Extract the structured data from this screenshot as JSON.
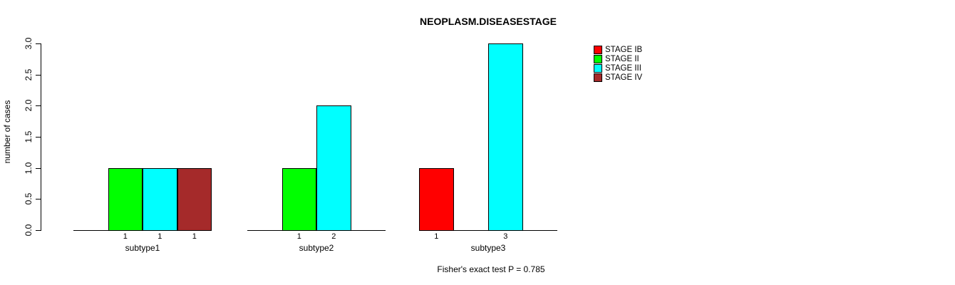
{
  "chart_data": {
    "type": "bar",
    "title": "NEOPLASM.DISEASESTAGE",
    "ylabel": "number of cases",
    "xlabel": "",
    "ylim": [
      0,
      3
    ],
    "ytick_labels": [
      "0.0",
      "0.5",
      "1.0",
      "1.5",
      "2.0",
      "2.5",
      "3.0"
    ],
    "categories": [
      "subtype1",
      "subtype2",
      "subtype3"
    ],
    "series": [
      {
        "name": "STAGE IB",
        "color": "#FF0000",
        "values": [
          0,
          0,
          1
        ]
      },
      {
        "name": "STAGE II",
        "color": "#00FF00",
        "values": [
          1,
          1,
          0
        ]
      },
      {
        "name": "STAGE III",
        "color": "#00FFFF",
        "values": [
          1,
          2,
          3
        ]
      },
      {
        "name": "STAGE IV",
        "color": "#A52A2A",
        "values": [
          1,
          0,
          0
        ]
      }
    ],
    "bar_value_labels_shown": true,
    "grid": false,
    "legend_position": "top-right",
    "annotation": "Fisher's exact test P = 0.785",
    "colors": {
      "background": "#FFFFFF",
      "axis": "#000000",
      "text": "#000000"
    }
  }
}
